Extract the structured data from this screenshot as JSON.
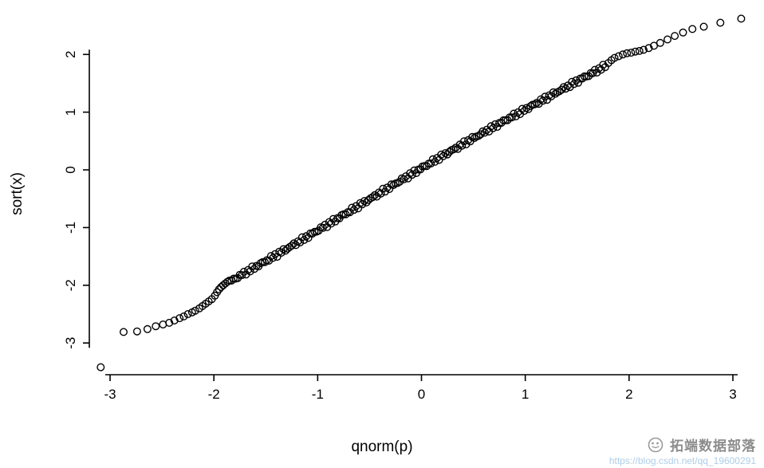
{
  "watermark": {
    "brand": "拓端数据部落",
    "url": "https://blog.csdn.net/qq_19600291",
    "logo_icon": "moon-panda-logo-icon",
    "brand_color": "#8c8c8c",
    "url_color": "#aecde8"
  },
  "chart_data": {
    "type": "scatter",
    "title": "",
    "xlabel": "qnorm(p)",
    "ylabel": "sort(x)",
    "xlim": [
      -3.2,
      3.2
    ],
    "ylim": [
      -3.55,
      2.75
    ],
    "x_ticks": [
      -3,
      -2,
      -1,
      0,
      1,
      2,
      3
    ],
    "y_ticks": [
      -3,
      -2,
      -1,
      0,
      1,
      2
    ],
    "grid": false,
    "legend": "none",
    "marker": "open-circle",
    "marker_color": "#000000",
    "description": "Normal Q-Q style plot: sorted sample values versus normal quantiles, points lie close to the identity line with heavier deviation in the tails",
    "points_left_tail": [
      [
        -3.09,
        -3.42
      ],
      [
        -2.87,
        -2.81
      ],
      [
        -2.74,
        -2.8
      ],
      [
        -2.64,
        -2.76
      ],
      [
        -2.56,
        -2.71
      ],
      [
        -2.49,
        -2.68
      ],
      [
        -2.43,
        -2.65
      ],
      [
        -2.38,
        -2.61
      ],
      [
        -2.33,
        -2.57
      ],
      [
        -2.29,
        -2.54
      ],
      [
        -2.25,
        -2.5
      ],
      [
        -2.21,
        -2.47
      ],
      [
        -2.18,
        -2.44
      ],
      [
        -2.14,
        -2.4
      ],
      [
        -2.11,
        -2.36
      ],
      [
        -2.08,
        -2.32
      ],
      [
        -2.05,
        -2.28
      ],
      [
        -2.02,
        -2.24
      ],
      [
        -1.99,
        -2.18
      ],
      [
        -1.97,
        -2.12
      ],
      [
        -1.95,
        -2.07
      ],
      [
        -1.93,
        -2.03
      ],
      [
        -1.91,
        -2.0
      ],
      [
        -1.89,
        -1.97
      ],
      [
        -1.87,
        -1.94
      ]
    ],
    "points_right_tail": [
      [
        1.8,
        1.85
      ],
      [
        1.83,
        1.9
      ],
      [
        1.86,
        1.94
      ],
      [
        1.9,
        1.97
      ],
      [
        1.94,
        2.0
      ],
      [
        1.98,
        2.02
      ],
      [
        2.02,
        2.03
      ],
      [
        2.06,
        2.05
      ],
      [
        2.1,
        2.06
      ],
      [
        2.14,
        2.08
      ],
      [
        2.19,
        2.11
      ],
      [
        2.24,
        2.15
      ],
      [
        2.3,
        2.2
      ],
      [
        2.37,
        2.26
      ],
      [
        2.44,
        2.32
      ],
      [
        2.52,
        2.38
      ],
      [
        2.61,
        2.44
      ],
      [
        2.72,
        2.48
      ],
      [
        2.88,
        2.55
      ],
      [
        3.08,
        2.62
      ]
    ],
    "dense_band": {
      "x_start": -1.85,
      "x_end": 1.78,
      "step": 0.02,
      "slope": 1.03,
      "intercept": 0.0,
      "wiggle_amp": 0.035,
      "wiggle_freq": 1.6,
      "jitter_amp": 0.03
    }
  }
}
